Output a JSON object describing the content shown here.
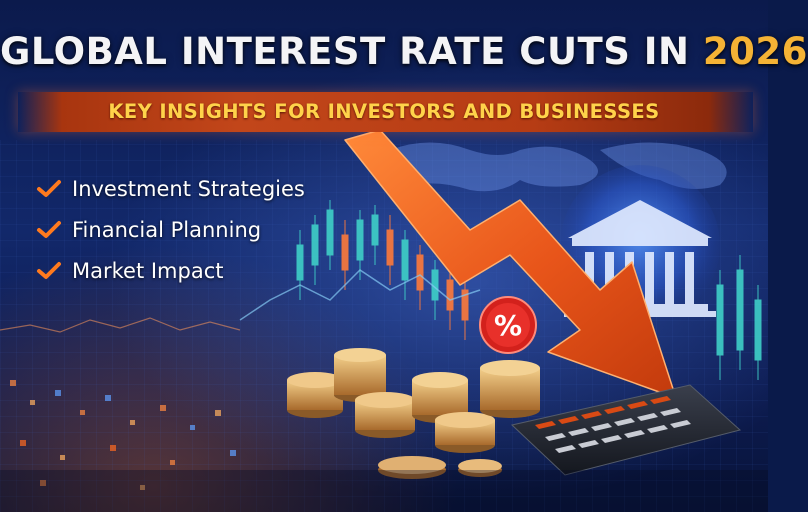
{
  "header": {
    "title_main": "GLOBAL INTEREST RATE CUTS IN ",
    "title_year": "2026",
    "subtitle": "KEY INSIGHTS FOR INVESTORS AND BUSINESSES"
  },
  "bullets": [
    {
      "label": "Investment Strategies",
      "icon": "check-icon"
    },
    {
      "label": "Financial Planning",
      "icon": "check-icon"
    },
    {
      "label": "Market Impact",
      "icon": "check-icon"
    }
  ],
  "badge": {
    "symbol": "%"
  },
  "colors": {
    "accent_orange": "#e8621c",
    "title_year": "#f5b335",
    "banner_text": "#ffd34a",
    "background": "#12286a"
  },
  "illustration": {
    "elements": [
      "world-map",
      "candlestick-chart",
      "bank-building-icon",
      "downward-arrow",
      "coin-stacks",
      "calculator"
    ]
  }
}
